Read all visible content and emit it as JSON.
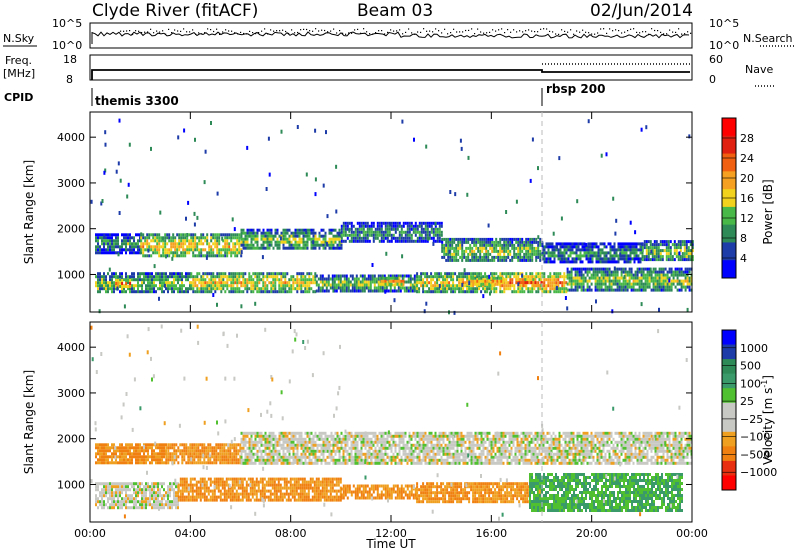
{
  "header": {
    "station": "Clyde River (fitACF)",
    "beam": "Beam 03",
    "date": "02/Jun/2014"
  },
  "top_panels": {
    "nsky_label": "N.Sky",
    "nsky_ticks": [
      "10^5",
      "10^0"
    ],
    "nsearch_label": "N.Search",
    "nsearch_ticks": [
      "10^5",
      "10^0"
    ],
    "freq_label": "Freq.",
    "freq_unit": "[MHz]",
    "freq_ticks": [
      "18",
      "8"
    ],
    "nave_label": "Nave",
    "nave_ticks": [
      "60",
      "0"
    ],
    "cpid_label": "CPID",
    "cpid_segments": [
      {
        "name": "themis 3300",
        "start_hour": 0
      },
      {
        "name": "rbsp 200",
        "start_hour": 18
      }
    ]
  },
  "colors": {
    "power": [
      "#0000ff",
      "#1e3ca8",
      "#2e8a57",
      "#48b848",
      "#f2d21c",
      "#f5a020",
      "#f06010",
      "#e02010",
      "#ff0000"
    ],
    "velocity": [
      "#ff0000",
      "#e83010",
      "#f08010",
      "#f0a020",
      "#c8c8c4",
      "#c8c8c4",
      "#50c030",
      "#3a9a6a",
      "#2e8a57",
      "#1e3ca8",
      "#0000ff"
    ]
  },
  "chart_data": [
    {
      "type": "heatmap",
      "name": "power",
      "xlabel": "",
      "ylabel": "Slant Range [km]",
      "xlim": [
        0,
        24
      ],
      "ylim": [
        180,
        4550
      ],
      "x_ticks": [
        0,
        4,
        8,
        12,
        16,
        20,
        24
      ],
      "y_ticks": [
        1000,
        2000,
        3000,
        4000
      ],
      "y_tick_labels": [
        "1000",
        "2000",
        "3000",
        "4000"
      ],
      "colorbar_label": "Power [dB]",
      "colorbar_ticks": [
        "4",
        "8",
        "12",
        "16",
        "20",
        "24",
        "28"
      ],
      "bands": [
        {
          "x0": 0.2,
          "x1": 2.0,
          "y0": 1500,
          "y1": 1900,
          "level": 12
        },
        {
          "x0": 2.0,
          "x1": 6.0,
          "y0": 1400,
          "y1": 1900,
          "level": 20
        },
        {
          "x0": 6.0,
          "x1": 10.0,
          "y0": 1550,
          "y1": 2000,
          "level": 16
        },
        {
          "x0": 10.0,
          "x1": 14.0,
          "y0": 1700,
          "y1": 2150,
          "level": 12
        },
        {
          "x0": 14.0,
          "x1": 18.0,
          "y0": 1300,
          "y1": 1800,
          "level": 16
        },
        {
          "x0": 18.0,
          "x1": 22.0,
          "y0": 1250,
          "y1": 1700,
          "level": 12
        },
        {
          "x0": 22.0,
          "x1": 24.0,
          "y0": 1300,
          "y1": 1750,
          "level": 16
        },
        {
          "x0": 0.2,
          "x1": 4.0,
          "y0": 600,
          "y1": 1050,
          "level": 16
        },
        {
          "x0": 4.0,
          "x1": 9.0,
          "y0": 650,
          "y1": 1050,
          "level": 20
        },
        {
          "x0": 9.0,
          "x1": 13.0,
          "y0": 650,
          "y1": 1000,
          "level": 16
        },
        {
          "x0": 13.0,
          "x1": 16.0,
          "y0": 650,
          "y1": 1050,
          "level": 20
        },
        {
          "x0": 16.0,
          "x1": 19.0,
          "y0": 650,
          "y1": 1050,
          "level": 24
        },
        {
          "x0": 19.0,
          "x1": 24.0,
          "y0": 650,
          "y1": 1150,
          "level": 16
        },
        {
          "x0": 1.0,
          "x1": 1.6,
          "y0": 750,
          "y1": 900,
          "level": 28
        },
        {
          "x0": 11.5,
          "x1": 12.5,
          "y0": 800,
          "y1": 950,
          "level": 24
        },
        {
          "x0": 15.0,
          "x1": 16.5,
          "y0": 780,
          "y1": 950,
          "level": 24
        },
        {
          "x0": 17.0,
          "x1": 18.0,
          "y0": 780,
          "y1": 920,
          "level": 28
        }
      ]
    },
    {
      "type": "heatmap",
      "name": "velocity",
      "xlabel": "Time UT",
      "ylabel": "Slant Range [km]",
      "xlim": [
        0,
        24
      ],
      "ylim": [
        180,
        4550
      ],
      "x_ticks": [
        0,
        4,
        8,
        12,
        16,
        20,
        24
      ],
      "x_tick_labels": [
        "00:00",
        "04:00",
        "08:00",
        "12:00",
        "16:00",
        "20:00",
        "00:00"
      ],
      "y_ticks": [
        1000,
        2000,
        3000,
        4000
      ],
      "y_tick_labels": [
        "1000",
        "2000",
        "3000",
        "4000"
      ],
      "colorbar_label": "Velocity [m s",
      "colorbar_label_sup": "-1",
      "colorbar_ticks": [
        "1000",
        "500",
        "100",
        "25",
        "−25",
        "−100",
        "−500",
        "−1000"
      ],
      "bands": [
        {
          "x0": 0.2,
          "x1": 3.0,
          "y0": 1500,
          "y1": 1900,
          "level": -100
        },
        {
          "x0": 3.0,
          "x1": 6.0,
          "y0": 1450,
          "y1": 1900,
          "level": -100
        },
        {
          "x0": 6.0,
          "x1": 24.0,
          "y0": 1450,
          "y1": 2150,
          "level": 0
        },
        {
          "x0": 0.2,
          "x1": 3.5,
          "y0": 500,
          "y1": 1050,
          "level": 0
        },
        {
          "x0": 3.5,
          "x1": 10.0,
          "y0": 650,
          "y1": 1150,
          "level": -100
        },
        {
          "x0": 10.0,
          "x1": 13.0,
          "y0": 700,
          "y1": 1000,
          "level": -100
        },
        {
          "x0": 13.0,
          "x1": 17.5,
          "y0": 650,
          "y1": 1050,
          "level": -100
        },
        {
          "x0": 17.5,
          "x1": 23.6,
          "y0": 450,
          "y1": 1250,
          "level": 100
        }
      ]
    }
  ]
}
